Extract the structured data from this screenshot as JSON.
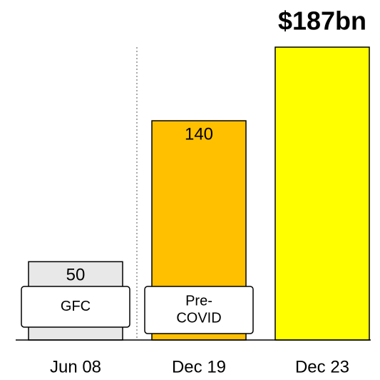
{
  "chart_data": {
    "type": "bar",
    "categories": [
      "Jun 08",
      "Dec 19",
      "Dec 23"
    ],
    "values": [
      50,
      140,
      187
    ],
    "value_labels": [
      "50",
      "140",
      "$187bn"
    ],
    "colors": [
      "#e8e8e8",
      "#ffc000",
      "#ffff00"
    ],
    "annotations": [
      [
        "GFC"
      ],
      [
        "Pre-",
        "COVID"
      ]
    ],
    "ylim": [
      0,
      187
    ]
  }
}
